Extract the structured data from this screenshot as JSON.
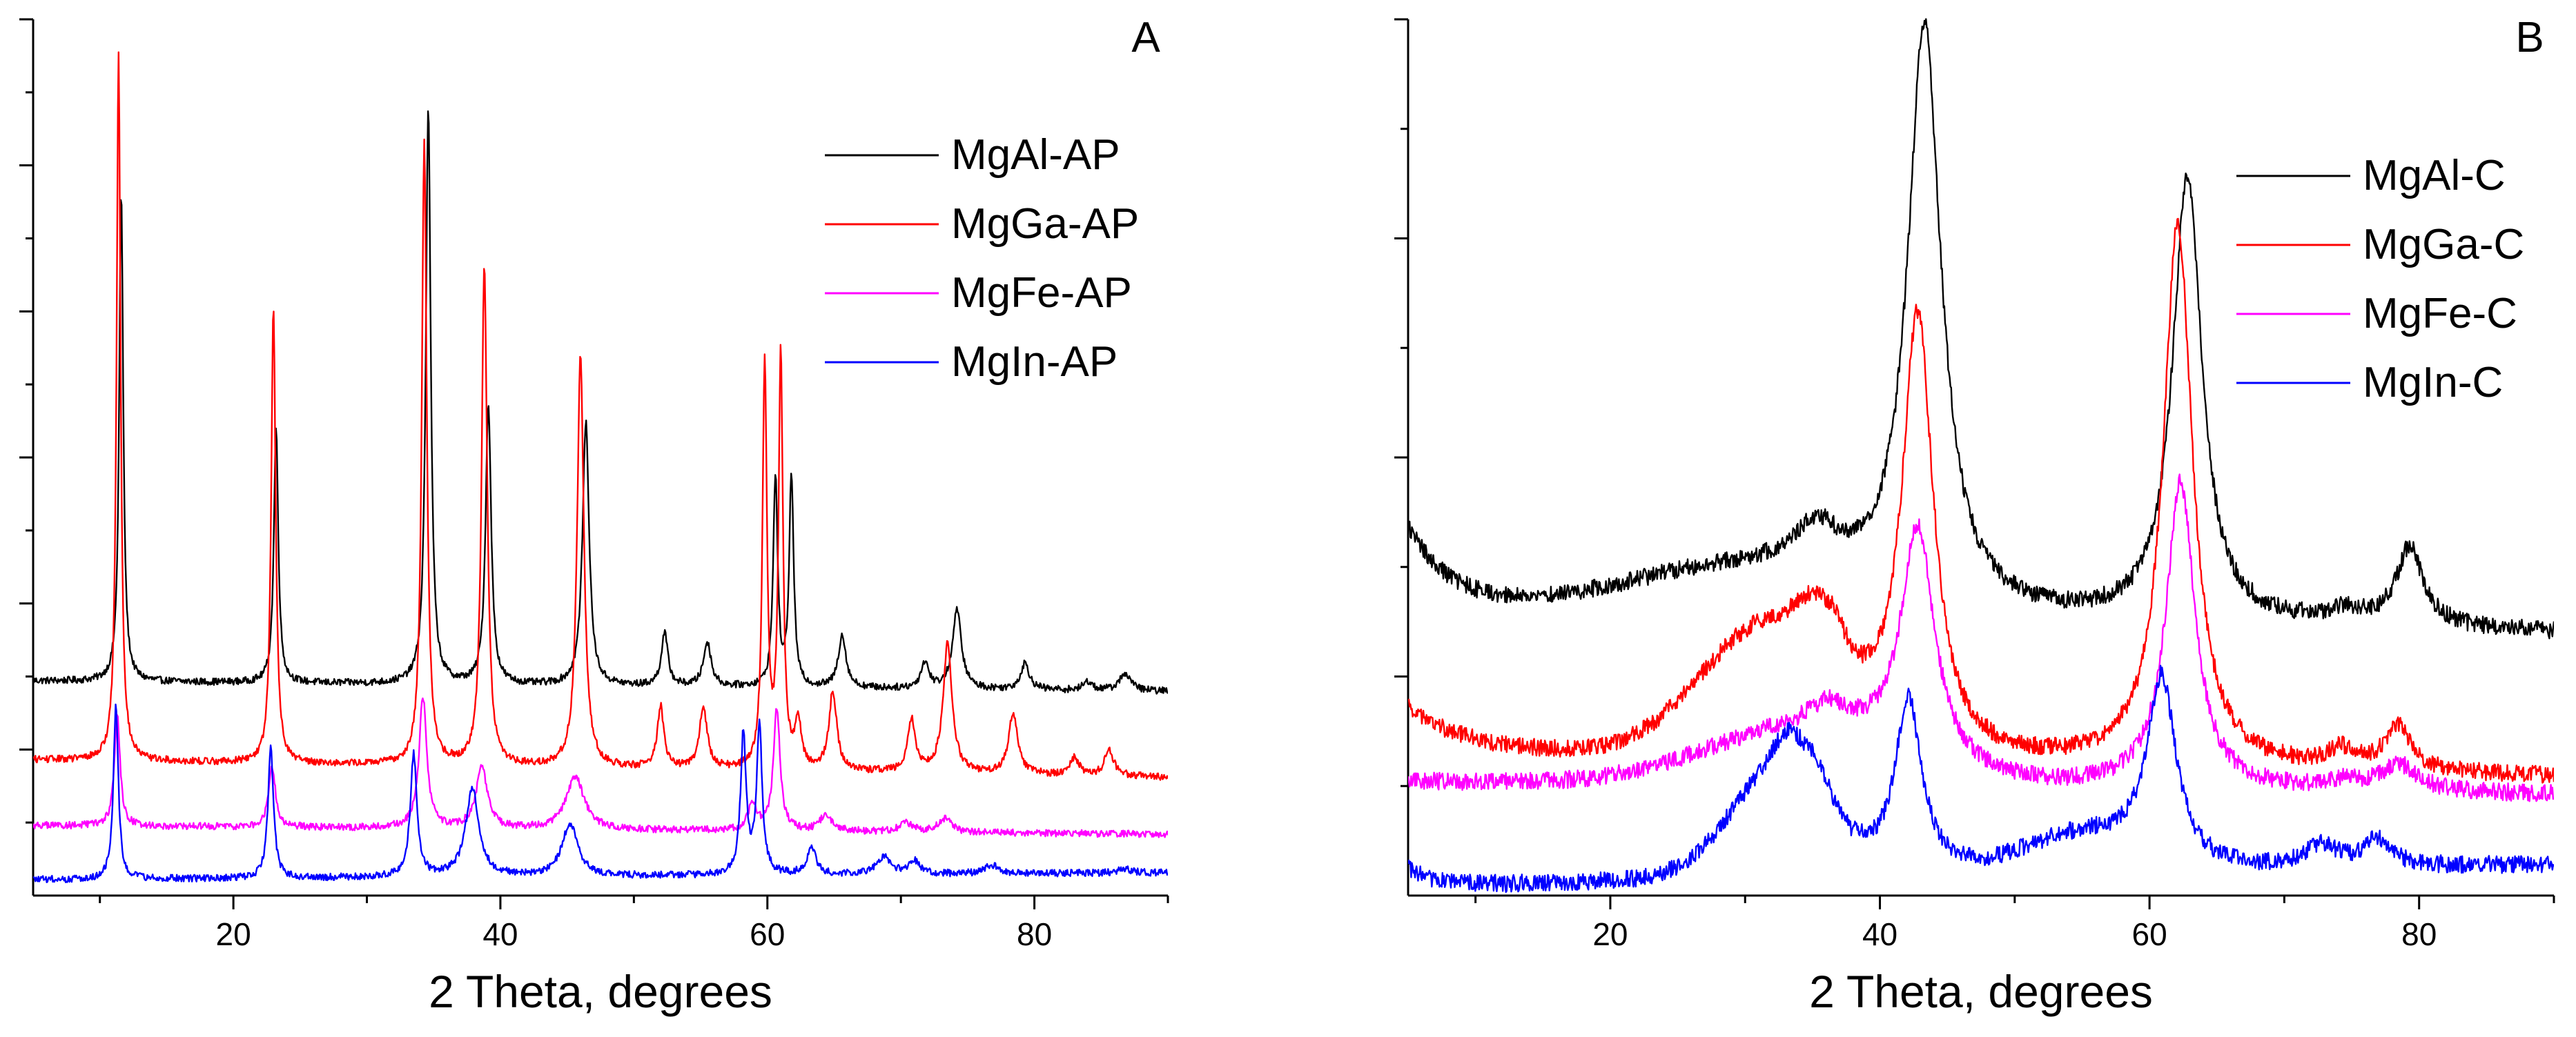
{
  "figure": {
    "panels": [
      "A",
      "B"
    ]
  },
  "chart_data": [
    {
      "type": "line",
      "panel_label": "A",
      "title": "",
      "xlabel": "2 Theta, degrees",
      "ylabel": "",
      "xlim": [
        5,
        90
      ],
      "ylim": [
        0,
        1
      ],
      "x_ticks": [
        20,
        40,
        60,
        80
      ],
      "y_ticks_labeled": false,
      "legend_position": "top-right",
      "series": [
        {
          "name": "MgAl-AP",
          "color": "#000000",
          "baseline": 0.245,
          "tilt": -0.012,
          "peaks": [
            [
              11.6,
              0.56,
              0.18
            ],
            [
              23.2,
              0.29,
              0.2
            ],
            [
              34.6,
              0.66,
              0.22
            ],
            [
              39.1,
              0.32,
              0.25
            ],
            [
              46.4,
              0.3,
              0.3
            ],
            [
              52.3,
              0.06,
              0.3
            ],
            [
              55.5,
              0.05,
              0.35
            ],
            [
              60.6,
              0.24,
              0.2
            ],
            [
              61.8,
              0.24,
              0.2
            ],
            [
              65.6,
              0.06,
              0.35
            ],
            [
              71.8,
              0.03,
              0.35
            ],
            [
              74.2,
              0.09,
              0.4
            ],
            [
              79.3,
              0.03,
              0.4
            ],
            [
              84.0,
              0.01,
              0.4
            ],
            [
              86.8,
              0.02,
              0.5
            ]
          ]
        },
        {
          "name": "MgGa-AP",
          "color": "#ff0000",
          "baseline": 0.155,
          "tilt": -0.02,
          "peaks": [
            [
              11.4,
              0.81,
              0.18
            ],
            [
              23.0,
              0.52,
              0.2
            ],
            [
              34.3,
              0.71,
              0.22
            ],
            [
              38.8,
              0.57,
              0.25
            ],
            [
              46.0,
              0.47,
              0.3
            ],
            [
              52.0,
              0.07,
              0.3
            ],
            [
              55.2,
              0.07,
              0.35
            ],
            [
              59.8,
              0.46,
              0.2
            ],
            [
              61.0,
              0.47,
              0.2
            ],
            [
              62.3,
              0.05,
              0.3
            ],
            [
              64.9,
              0.09,
              0.35
            ],
            [
              70.8,
              0.06,
              0.35
            ],
            [
              73.5,
              0.15,
              0.4
            ],
            [
              78.4,
              0.07,
              0.4
            ],
            [
              83.0,
              0.02,
              0.4
            ],
            [
              85.6,
              0.03,
              0.4
            ]
          ]
        },
        {
          "name": "MgFe-AP",
          "color": "#ff00ff",
          "baseline": 0.08,
          "tilt": -0.01,
          "peaks": [
            [
              11.3,
              0.13,
              0.25
            ],
            [
              22.9,
              0.07,
              0.3
            ],
            [
              34.2,
              0.15,
              0.35
            ],
            [
              38.6,
              0.07,
              0.5
            ],
            [
              45.6,
              0.06,
              0.8
            ],
            [
              58.9,
              0.03,
              0.4
            ],
            [
              60.7,
              0.14,
              0.3
            ],
            [
              64.4,
              0.02,
              0.5
            ],
            [
              70.4,
              0.01,
              0.6
            ],
            [
              73.3,
              0.015,
              0.6
            ]
          ]
        },
        {
          "name": "MgIn-AP",
          "color": "#0000ff",
          "baseline": 0.018,
          "tilt": 0.008,
          "peaks": [
            [
              11.2,
              0.2,
              0.22
            ],
            [
              22.8,
              0.15,
              0.25
            ],
            [
              33.5,
              0.14,
              0.3
            ],
            [
              37.9,
              0.1,
              0.6
            ],
            [
              45.2,
              0.06,
              0.7
            ],
            [
              58.2,
              0.16,
              0.25
            ],
            [
              59.4,
              0.17,
              0.25
            ],
            [
              63.3,
              0.03,
              0.4
            ],
            [
              68.7,
              0.02,
              0.6
            ],
            [
              71.0,
              0.015,
              0.5
            ],
            [
              76.8,
              0.01,
              0.6
            ],
            [
              86.8,
              0.005,
              0.6
            ]
          ]
        }
      ]
    },
    {
      "type": "line",
      "panel_label": "B",
      "title": "",
      "xlabel": "2 Theta, degrees",
      "ylabel": "",
      "xlim": [
        5,
        90
      ],
      "ylim": [
        0,
        1
      ],
      "x_ticks": [
        20,
        40,
        60,
        80
      ],
      "y_ticks_labeled": false,
      "legend_position": "top-right",
      "series": [
        {
          "name": "MgAl-C",
          "color": "#000000",
          "baseline": 0.33,
          "tilt": -0.03,
          "lowangle": [
            0.09,
            3.0
          ],
          "peaks": [
            [
              35.3,
              0.05,
              2.0
            ],
            [
              43.3,
              0.66,
              1.5
            ],
            [
              62.8,
              0.51,
              1.3
            ],
            [
              74.5,
              0.015,
              1.5
            ],
            [
              79.3,
              0.09,
              1.2
            ]
          ],
          "humps": [
            [
              30.0,
              0.05,
              12.0
            ]
          ]
        },
        {
          "name": "MgGa-C",
          "color": "#ff0000",
          "baseline": 0.165,
          "tilt": -0.03,
          "lowangle": [
            0.05,
            4.0
          ],
          "peaks": [
            [
              35.0,
              0.05,
              1.7
            ],
            [
              36.6,
              0.04,
              1.3
            ],
            [
              42.8,
              0.5,
              1.4
            ],
            [
              62.1,
              0.62,
              1.3
            ],
            [
              74.2,
              0.02,
              1.2
            ],
            [
              78.4,
              0.05,
              1.2
            ]
          ],
          "humps": [
            [
              31.5,
              0.14,
              7.0
            ]
          ]
        },
        {
          "name": "MgFe-C",
          "color": "#ff00ff",
          "baseline": 0.13,
          "tilt": -0.015,
          "lowangle": [
            0.0,
            3.0
          ],
          "peaks": [
            [
              36.2,
              0.03,
              1.8
            ],
            [
              42.8,
              0.27,
              1.5
            ],
            [
              62.3,
              0.35,
              1.3
            ],
            [
              74.5,
              0.01,
              1.5
            ],
            [
              78.5,
              0.03,
              1.6
            ]
          ],
          "humps": [
            [
              34.0,
              0.06,
              10.0
            ]
          ]
        },
        {
          "name": "MgIn-C",
          "color": "#0000ff",
          "baseline": 0.01,
          "tilt": 0.025,
          "lowangle": [
            0.02,
            2.0
          ],
          "peaks": [
            [
              33.3,
              0.07,
              2.0
            ],
            [
              35.4,
              0.04,
              1.3
            ],
            [
              42.1,
              0.2,
              1.2
            ],
            [
              60.9,
              0.21,
              1.3
            ],
            [
              72.8,
              0.025,
              1.5
            ],
            [
              76.9,
              0.03,
              1.2
            ]
          ],
          "humps": [
            [
              32.0,
              0.09,
              5.0
            ],
            [
              55.0,
              0.04,
              6.0
            ]
          ]
        }
      ]
    }
  ]
}
